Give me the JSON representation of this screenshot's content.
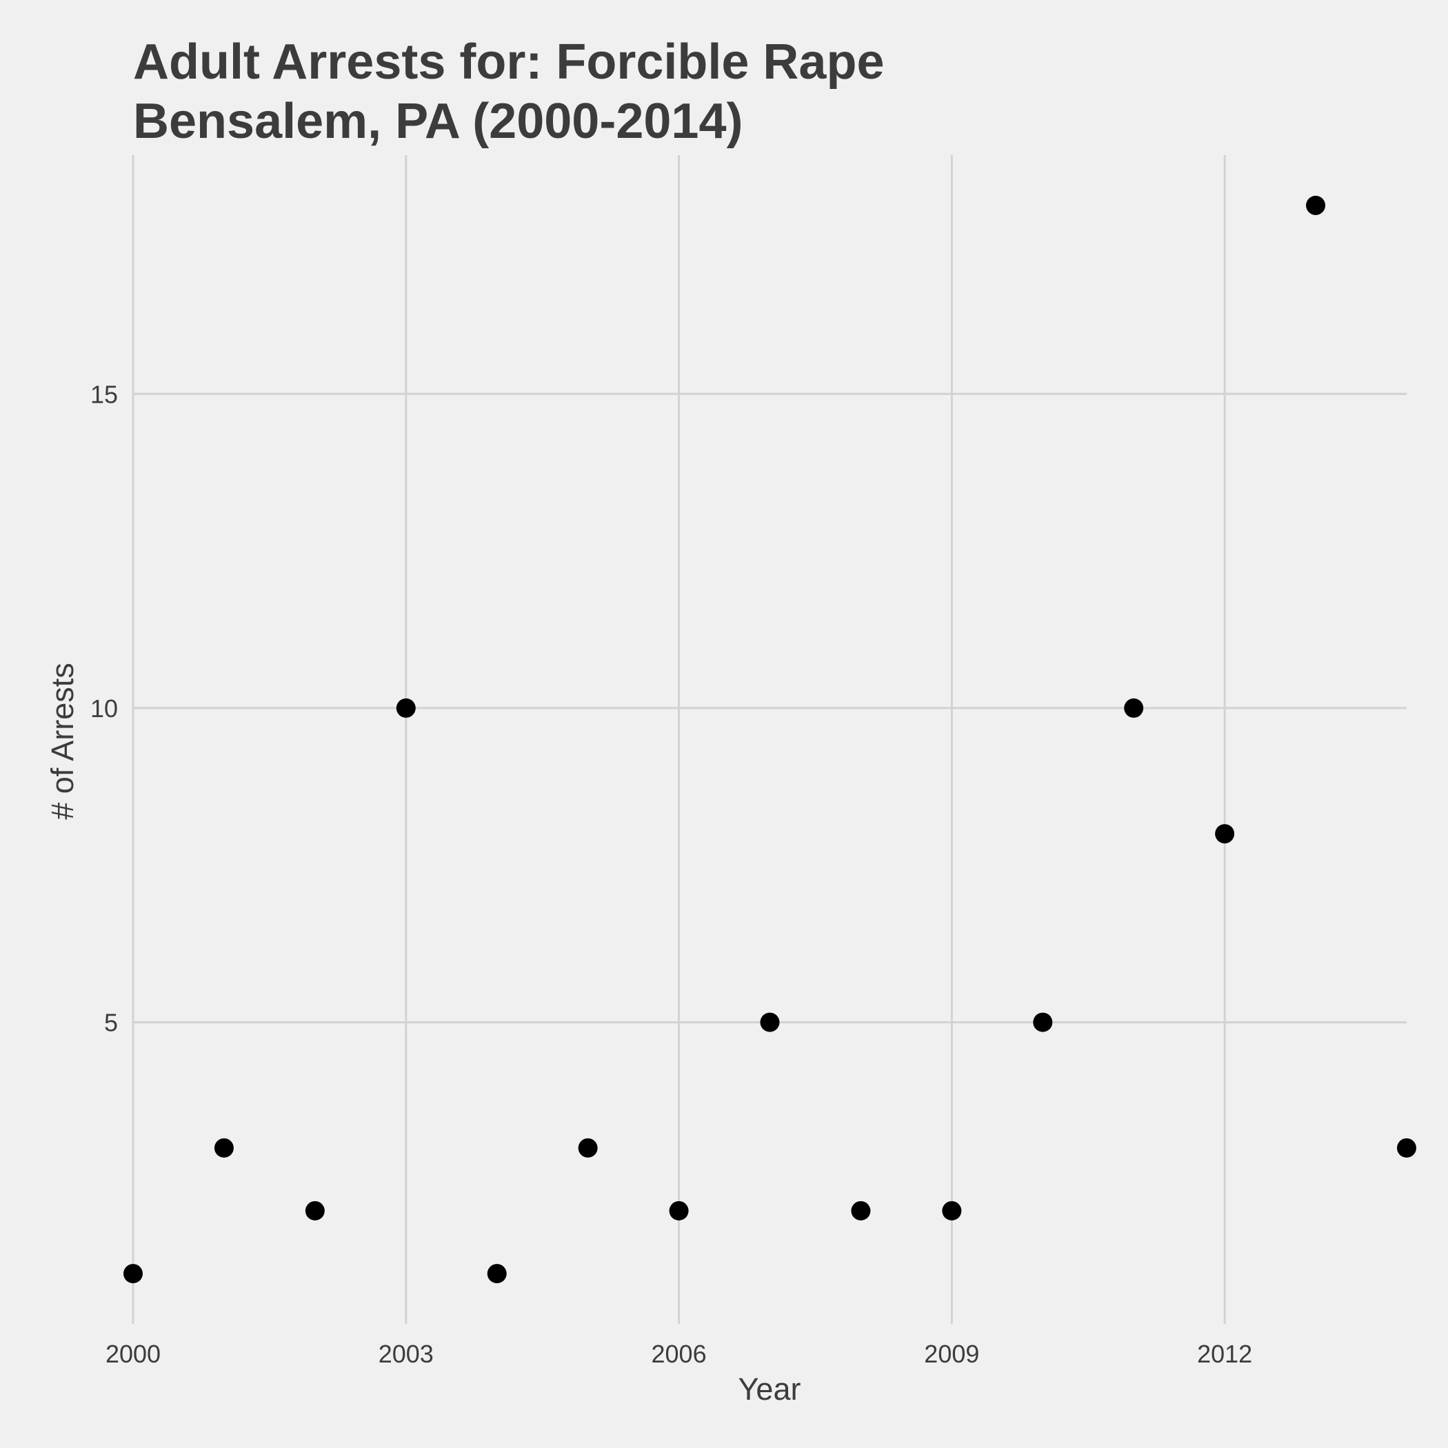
{
  "chart_data": {
    "type": "scatter",
    "title": "Adult Arrests for: Forcible Rape\nBensalem, PA (2000-2014)",
    "title_lines": [
      "Adult Arrests for: Forcible Rape",
      "Bensalem, PA (2000-2014)"
    ],
    "xlabel": "Year",
    "ylabel": "# of Arrests",
    "x": [
      2000,
      2001,
      2002,
      2003,
      2004,
      2005,
      2006,
      2007,
      2008,
      2009,
      2010,
      2011,
      2012,
      2013,
      2014
    ],
    "y": [
      1,
      3,
      2,
      10,
      1,
      3,
      2,
      5,
      2,
      2,
      5,
      10,
      8,
      18,
      3
    ],
    "xlim": [
      2000,
      2014
    ],
    "ylim": [
      0.2,
      18.8
    ],
    "x_ticks": [
      2000,
      2003,
      2006,
      2009,
      2012
    ],
    "x_tick_labels": [
      "2000",
      "2003",
      "2006",
      "2009",
      "2012"
    ],
    "y_ticks": [
      5,
      10,
      15
    ],
    "y_tick_labels": [
      "5",
      "10",
      "15"
    ],
    "grid": true,
    "legend": "none",
    "colors": {
      "background": "#f0f0f0",
      "grid": "#d2d2d2",
      "point": "#000000",
      "text": "#3c3c3c"
    }
  }
}
